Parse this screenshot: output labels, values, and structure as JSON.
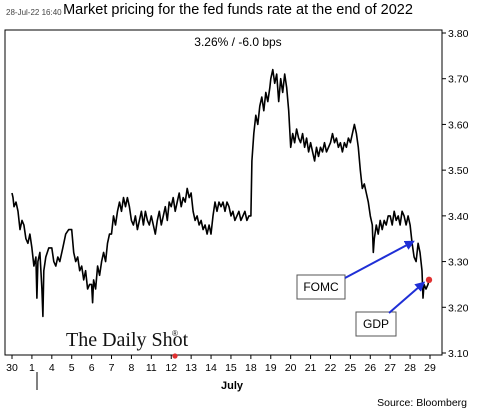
{
  "header": {
    "timestamp": "28-Jul-22 16:40",
    "title": "Market pricing for the fed funds rate at the end of 2022",
    "subtitle": "3.26%  /  -6.0 bps"
  },
  "brand": {
    "name": "The Daily Shot",
    "mark": "®"
  },
  "footer": {
    "source": "Source: Bloomberg"
  },
  "colors": {
    "line": "#000000",
    "arrow": "#1f2fd6",
    "marker": "#e03030",
    "axis": "#000000"
  },
  "chart_data": {
    "type": "line",
    "title": "Market pricing for the fed funds rate at the end of 2022",
    "subtitle": "3.26%  /  -6.0 bps",
    "xlabel": "July",
    "ylabel": "",
    "ylim": [
      3.1,
      3.8
    ],
    "y_ticks": [
      "3.10",
      "3.20",
      "3.30",
      "3.40",
      "3.50",
      "3.60",
      "3.70",
      "3.80"
    ],
    "x_tick_labels": [
      "30",
      "1",
      "4",
      "5",
      "6",
      "7",
      "8",
      "11",
      "12",
      "13",
      "14",
      "15",
      "18",
      "19",
      "20",
      "21",
      "22",
      "25",
      "26",
      "27",
      "28",
      "29"
    ],
    "x_index_range": [
      0,
      21
    ],
    "grid": false,
    "series": [
      {
        "values": [
          [
            0.0,
            3.45
          ],
          [
            0.05,
            3.44
          ],
          [
            0.1,
            3.42
          ],
          [
            0.2,
            3.43
          ],
          [
            0.3,
            3.41
          ],
          [
            0.4,
            3.37
          ],
          [
            0.5,
            3.39
          ],
          [
            0.6,
            3.38
          ],
          [
            0.7,
            3.35
          ],
          [
            0.8,
            3.34
          ],
          [
            0.9,
            3.36
          ],
          [
            1.0,
            3.33
          ],
          [
            1.1,
            3.29
          ],
          [
            1.2,
            3.31
          ],
          [
            1.25,
            3.22
          ],
          [
            1.3,
            3.3
          ],
          [
            1.4,
            3.32
          ],
          [
            1.5,
            3.24
          ],
          [
            1.55,
            3.18
          ],
          [
            1.6,
            3.28
          ],
          [
            1.7,
            3.31
          ],
          [
            1.85,
            3.33
          ],
          [
            2.0,
            3.33
          ],
          [
            2.1,
            3.3
          ],
          [
            2.2,
            3.29
          ],
          [
            2.3,
            3.31
          ],
          [
            2.4,
            3.3
          ],
          [
            2.55,
            3.33
          ],
          [
            2.7,
            3.36
          ],
          [
            2.85,
            3.37
          ],
          [
            3.0,
            3.37
          ],
          [
            3.1,
            3.32
          ],
          [
            3.2,
            3.3
          ],
          [
            3.3,
            3.31
          ],
          [
            3.4,
            3.28
          ],
          [
            3.5,
            3.29
          ],
          [
            3.6,
            3.26
          ],
          [
            3.7,
            3.28
          ],
          [
            3.8,
            3.24
          ],
          [
            3.9,
            3.25
          ],
          [
            4.0,
            3.25
          ],
          [
            4.05,
            3.21
          ],
          [
            4.1,
            3.26
          ],
          [
            4.2,
            3.24
          ],
          [
            4.3,
            3.29
          ],
          [
            4.4,
            3.27
          ],
          [
            4.5,
            3.3
          ],
          [
            4.6,
            3.32
          ],
          [
            4.7,
            3.3
          ],
          [
            4.8,
            3.34
          ],
          [
            4.9,
            3.36
          ],
          [
            5.0,
            3.36
          ],
          [
            5.1,
            3.4
          ],
          [
            5.2,
            3.38
          ],
          [
            5.3,
            3.41
          ],
          [
            5.4,
            3.43
          ],
          [
            5.5,
            3.41
          ],
          [
            5.6,
            3.44
          ],
          [
            5.7,
            3.42
          ],
          [
            5.8,
            3.44
          ],
          [
            5.9,
            3.42
          ],
          [
            6.0,
            3.39
          ],
          [
            6.1,
            3.38
          ],
          [
            6.2,
            3.4
          ],
          [
            6.3,
            3.37
          ],
          [
            6.4,
            3.39
          ],
          [
            6.5,
            3.41
          ],
          [
            6.6,
            3.38
          ],
          [
            6.7,
            3.41
          ],
          [
            6.8,
            3.39
          ],
          [
            6.9,
            3.38
          ],
          [
            7.0,
            3.4
          ],
          [
            7.1,
            3.38
          ],
          [
            7.2,
            3.36
          ],
          [
            7.3,
            3.39
          ],
          [
            7.4,
            3.41
          ],
          [
            7.5,
            3.38
          ],
          [
            7.6,
            3.4
          ],
          [
            7.7,
            3.42
          ],
          [
            7.8,
            3.39
          ],
          [
            7.9,
            3.43
          ],
          [
            8.0,
            3.42
          ],
          [
            8.1,
            3.44
          ],
          [
            8.2,
            3.41
          ],
          [
            8.3,
            3.43
          ],
          [
            8.4,
            3.45
          ],
          [
            8.5,
            3.42
          ],
          [
            8.6,
            3.44
          ],
          [
            8.7,
            3.43
          ],
          [
            8.8,
            3.46
          ],
          [
            8.9,
            3.44
          ],
          [
            9.0,
            3.45
          ],
          [
            9.1,
            3.41
          ],
          [
            9.2,
            3.39
          ],
          [
            9.3,
            3.4
          ],
          [
            9.4,
            3.38
          ],
          [
            9.5,
            3.39
          ],
          [
            9.6,
            3.37
          ],
          [
            9.7,
            3.38
          ],
          [
            9.8,
            3.36
          ],
          [
            9.9,
            3.38
          ],
          [
            10.0,
            3.36
          ],
          [
            10.1,
            3.4
          ],
          [
            10.2,
            3.43
          ],
          [
            10.3,
            3.41
          ],
          [
            10.4,
            3.43
          ],
          [
            10.5,
            3.42
          ],
          [
            10.6,
            3.43
          ],
          [
            10.7,
            3.41
          ],
          [
            10.8,
            3.43
          ],
          [
            10.9,
            3.42
          ],
          [
            11.0,
            3.4
          ],
          [
            11.1,
            3.41
          ],
          [
            11.2,
            3.39
          ],
          [
            11.3,
            3.4
          ],
          [
            11.4,
            3.41
          ],
          [
            11.5,
            3.39
          ],
          [
            11.6,
            3.4
          ],
          [
            11.7,
            3.41
          ],
          [
            11.8,
            3.39
          ],
          [
            11.9,
            3.4
          ],
          [
            12.0,
            3.4
          ],
          [
            12.05,
            3.52
          ],
          [
            12.15,
            3.58
          ],
          [
            12.25,
            3.62
          ],
          [
            12.35,
            3.6
          ],
          [
            12.45,
            3.64
          ],
          [
            12.55,
            3.66
          ],
          [
            12.65,
            3.63
          ],
          [
            12.75,
            3.67
          ],
          [
            12.85,
            3.65
          ],
          [
            12.95,
            3.68
          ],
          [
            13.0,
            3.7
          ],
          [
            13.1,
            3.72
          ],
          [
            13.2,
            3.69
          ],
          [
            13.3,
            3.71
          ],
          [
            13.4,
            3.65
          ],
          [
            13.5,
            3.7
          ],
          [
            13.6,
            3.67
          ],
          [
            13.7,
            3.71
          ],
          [
            13.8,
            3.68
          ],
          [
            13.9,
            3.63
          ],
          [
            14.0,
            3.55
          ],
          [
            14.1,
            3.58
          ],
          [
            14.2,
            3.56
          ],
          [
            14.3,
            3.59
          ],
          [
            14.4,
            3.57
          ],
          [
            14.5,
            3.56
          ],
          [
            14.6,
            3.58
          ],
          [
            14.7,
            3.55
          ],
          [
            14.8,
            3.57
          ],
          [
            14.9,
            3.54
          ],
          [
            15.0,
            3.56
          ],
          [
            15.1,
            3.54
          ],
          [
            15.2,
            3.52
          ],
          [
            15.3,
            3.55
          ],
          [
            15.4,
            3.53
          ],
          [
            15.5,
            3.55
          ],
          [
            15.6,
            3.54
          ],
          [
            15.7,
            3.56
          ],
          [
            15.8,
            3.54
          ],
          [
            15.9,
            3.55
          ],
          [
            16.0,
            3.56
          ],
          [
            16.1,
            3.58
          ],
          [
            16.2,
            3.56
          ],
          [
            16.3,
            3.57
          ],
          [
            16.4,
            3.55
          ],
          [
            16.5,
            3.56
          ],
          [
            16.6,
            3.54
          ],
          [
            16.7,
            3.56
          ],
          [
            16.8,
            3.55
          ],
          [
            16.9,
            3.57
          ],
          [
            17.0,
            3.56
          ],
          [
            17.1,
            3.58
          ],
          [
            17.2,
            3.6
          ],
          [
            17.3,
            3.58
          ],
          [
            17.4,
            3.55
          ],
          [
            17.5,
            3.5
          ],
          [
            17.6,
            3.46
          ],
          [
            17.7,
            3.47
          ],
          [
            17.8,
            3.45
          ],
          [
            17.9,
            3.43
          ],
          [
            18.0,
            3.4
          ],
          [
            18.1,
            3.38
          ],
          [
            18.15,
            3.32
          ],
          [
            18.2,
            3.35
          ],
          [
            18.3,
            3.38
          ],
          [
            18.4,
            3.36
          ],
          [
            18.5,
            3.39
          ],
          [
            18.6,
            3.37
          ],
          [
            18.7,
            3.39
          ],
          [
            18.8,
            3.38
          ],
          [
            18.9,
            3.4
          ],
          [
            19.0,
            3.4
          ],
          [
            19.1,
            3.38
          ],
          [
            19.2,
            3.41
          ],
          [
            19.3,
            3.39
          ],
          [
            19.4,
            3.4
          ],
          [
            19.5,
            3.38
          ],
          [
            19.6,
            3.41
          ],
          [
            19.7,
            3.4
          ],
          [
            19.8,
            3.38
          ],
          [
            19.9,
            3.4
          ],
          [
            20.0,
            3.38
          ],
          [
            20.1,
            3.34
          ],
          [
            20.2,
            3.31
          ],
          [
            20.3,
            3.3
          ],
          [
            20.4,
            3.34
          ],
          [
            20.5,
            3.32
          ],
          [
            20.6,
            3.28
          ],
          [
            20.65,
            3.22
          ],
          [
            20.7,
            3.25
          ],
          [
            20.8,
            3.24
          ],
          [
            20.9,
            3.25
          ],
          [
            20.95,
            3.26
          ]
        ]
      }
    ],
    "last_value": 3.26,
    "annotations": [
      {
        "text": "FOMC",
        "points_to": [
          20.15,
          3.35
        ]
      },
      {
        "text": "GDP",
        "points_to": [
          20.58,
          3.26
        ]
      }
    ]
  }
}
